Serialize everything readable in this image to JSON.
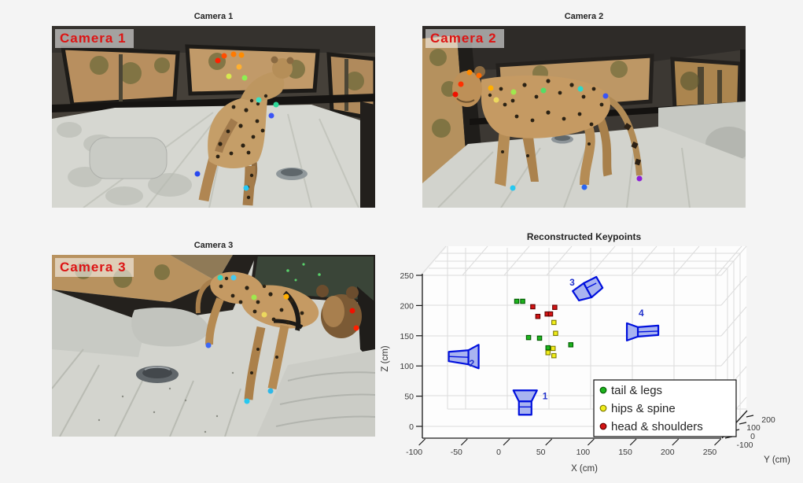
{
  "figure": {
    "bg": "#f4f4f4"
  },
  "panels": {
    "camera1": {
      "title": "Camera 1",
      "overlay": "Camera 1"
    },
    "camera2": {
      "title": "Camera 2",
      "overlay": "Camera 2"
    },
    "camera3": {
      "title": "Camera 3",
      "overlay": "Camera 3"
    },
    "plot3d": {
      "title": "Reconstructed Keypoints",
      "xlabel": "X (cm)",
      "ylabel": "Y (cm)",
      "zlabel": "Z (cm)"
    }
  },
  "keypoints": {
    "camera1": [
      [
        211,
        44,
        "#ff2000"
      ],
      [
        219,
        38,
        "#ff4d00"
      ],
      [
        231,
        36,
        "#ff7a00"
      ],
      [
        241,
        37,
        "#ff8c00"
      ],
      [
        238,
        52,
        "#ffb030"
      ],
      [
        225,
        64,
        "#d8e84e"
      ],
      [
        245,
        66,
        "#8ef052"
      ],
      [
        263,
        94,
        "#3fe0c0"
      ],
      [
        285,
        100,
        "#2ed898"
      ],
      [
        279,
        114,
        "#3b55f5"
      ],
      [
        185,
        188,
        "#2948ef"
      ],
      [
        247,
        206,
        "#27c8f5"
      ]
    ],
    "camera2": [
      [
        60,
        59,
        "#ff8a00"
      ],
      [
        72,
        63,
        "#ff6a00"
      ],
      [
        49,
        74,
        "#ff3000"
      ],
      [
        42,
        87,
        "#f01000"
      ],
      [
        87,
        79,
        "#ffae00"
      ],
      [
        94,
        94,
        "#ecd85e"
      ],
      [
        116,
        84,
        "#a0e84e"
      ],
      [
        154,
        82,
        "#55dd66"
      ],
      [
        201,
        80,
        "#2fd8c8"
      ],
      [
        233,
        89,
        "#3b55f5"
      ],
      [
        276,
        194,
        "#8c1fd8"
      ],
      [
        115,
        206,
        "#27c8f0"
      ],
      [
        206,
        205,
        "#2b66f0"
      ]
    ],
    "camera3": [
      [
        214,
        29,
        "#2fd8c8"
      ],
      [
        231,
        29,
        "#45c8f0"
      ],
      [
        257,
        54,
        "#a0e84e"
      ],
      [
        298,
        53,
        "#ffae00"
      ],
      [
        270,
        76,
        "#ecd85e"
      ],
      [
        382,
        71,
        "#f01000"
      ],
      [
        387,
        93,
        "#ff2000"
      ],
      [
        199,
        115,
        "#3b66f5"
      ],
      [
        278,
        173,
        "#2fb8e8"
      ],
      [
        248,
        186,
        "#27c8f0"
      ]
    ]
  },
  "chart_data": {
    "type": "scatter",
    "projection": "3d",
    "title": "Reconstructed Keypoints",
    "xlabel": "X (cm)",
    "ylabel": "Y (cm)",
    "zlabel": "Z (cm)",
    "x_ticks": [
      -100,
      -50,
      0,
      50,
      100,
      150,
      200,
      250
    ],
    "y_ticks": [
      -100,
      0,
      100,
      200
    ],
    "z_ticks": [
      0,
      50,
      100,
      150,
      200,
      250
    ],
    "xlim": [
      -100,
      255
    ],
    "zlim": [
      -20,
      255
    ],
    "grid": true,
    "legend_position": "lower right",
    "legend": [
      {
        "label": "tail & legs",
        "color": "#1db31d",
        "edge": "#005a00"
      },
      {
        "label": "hips & spine",
        "color": "#f0ed1a",
        "edge": "#7d7a00"
      },
      {
        "label": "head & shoulders",
        "color": "#d41414",
        "edge": "#5f0000"
      }
    ],
    "series": [
      {
        "name": "tail & legs",
        "points_xz_cm": [
          [
            14,
            207
          ],
          [
            21,
            207
          ],
          [
            28,
            147
          ],
          [
            41,
            146
          ],
          [
            78,
            135
          ],
          [
            51,
            130
          ]
        ]
      },
      {
        "name": "hips & spine",
        "points_xz_cm": [
          [
            58,
            172
          ],
          [
            60,
            154
          ],
          [
            57,
            129
          ],
          [
            51,
            122
          ],
          [
            58,
            117
          ]
        ]
      },
      {
        "name": "head & shoulders",
        "points_xz_cm": [
          [
            33,
            198
          ],
          [
            59,
            197
          ],
          [
            39,
            182
          ],
          [
            50,
            186
          ],
          [
            54,
            186
          ]
        ]
      }
    ],
    "cameras": [
      {
        "id": "1",
        "x_cm": 24,
        "z_cm": 40
      },
      {
        "id": "2",
        "x_cm": -46,
        "z_cm": 113
      },
      {
        "id": "3",
        "x_cm": 97,
        "z_cm": 224
      },
      {
        "id": "4",
        "x_cm": 163,
        "z_cm": 159
      }
    ],
    "camera_color": "#0011dd"
  }
}
